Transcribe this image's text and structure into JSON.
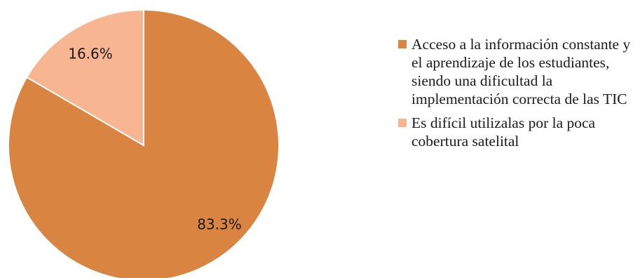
{
  "chart_data": {
    "type": "pie",
    "slices": [
      {
        "label": "Acceso a la información constante y el aprendizaje de los estudiantes, siendo una dificultad la implementación correcta de las TIC",
        "value": 83.3,
        "value_label": "83.3%",
        "color": "#D98441"
      },
      {
        "label": "Es difícil utilizalas por la poca cobertura satelital",
        "value": 16.6,
        "value_label": "16.6%",
        "color": "#F8B592"
      }
    ],
    "legend_placement": "right",
    "start_angle": "top",
    "direction": "clockwise"
  }
}
